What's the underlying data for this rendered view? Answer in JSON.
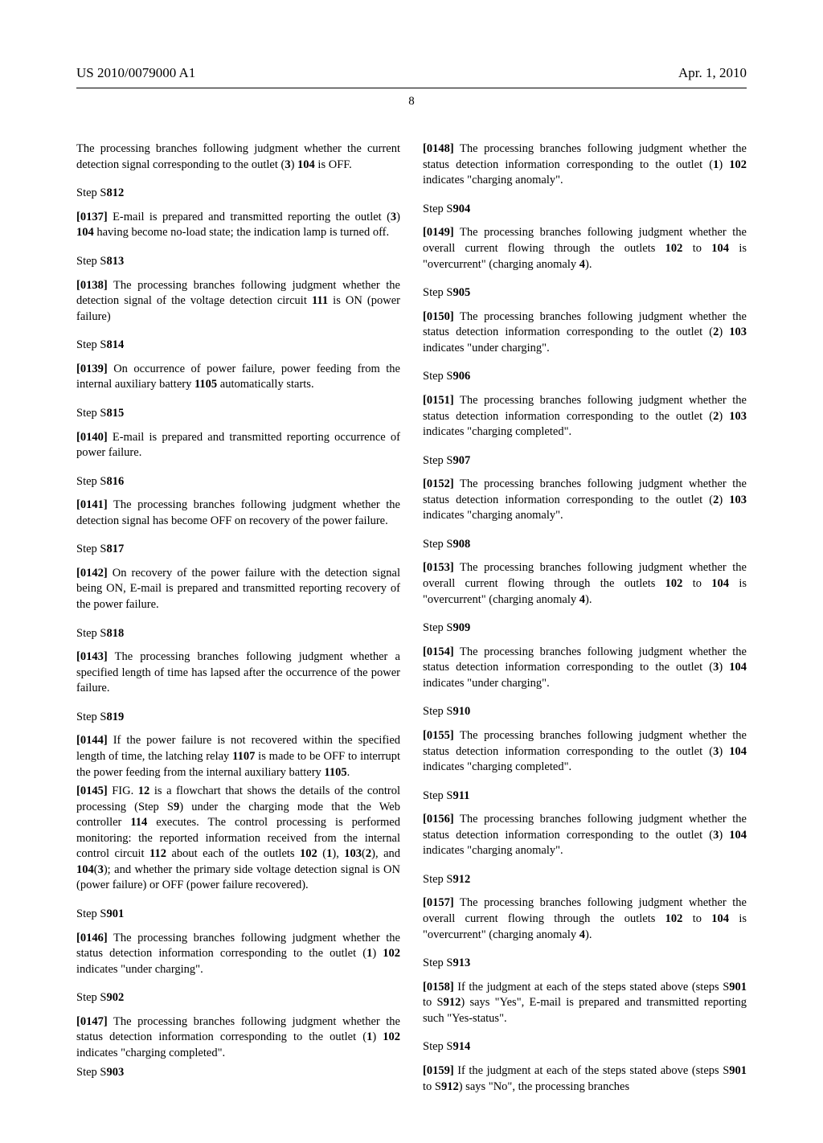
{
  "header": {
    "pub_number": "US 2010/0079000 A1",
    "date": "Apr. 1, 2010",
    "page_number": "8"
  },
  "left_col": {
    "intro": {
      "text": "The processing branches following judgment whether the current detection signal corresponding to the outlet (",
      "b1": "3",
      "t2": ") ",
      "b2": "104",
      "t3": " is OFF."
    },
    "s812": {
      "hdr_a": "Step S",
      "hdr_b": "812",
      "pn": "[0137]",
      "indent": "    ",
      "t1": "E-mail is prepared and transmitted reporting the outlet (",
      "b1": "3",
      "t2": ") ",
      "b2": "104",
      "t3": " having become no-load state; the indication lamp is turned off."
    },
    "s813": {
      "hdr_a": "Step S",
      "hdr_b": "813",
      "pn": "[0138]",
      "indent": "    ",
      "t1": "The processing branches following judgment whether the detection signal of the voltage detection circuit ",
      "b1": "111",
      "t2": " is ON (power failure)"
    },
    "s814": {
      "hdr_a": "Step S",
      "hdr_b": "814",
      "pn": "[0139]",
      "indent": "    ",
      "t1": "On occurrence of power failure, power feeding from the internal auxiliary battery ",
      "b1": "1105",
      "t2": " automatically starts."
    },
    "s815": {
      "hdr_a": "Step S",
      "hdr_b": "815",
      "pn": "[0140]",
      "indent": "    ",
      "t1": "E-mail is prepared and transmitted reporting occurrence of power failure."
    },
    "s816": {
      "hdr_a": "Step S",
      "hdr_b": "816",
      "pn": "[0141]",
      "indent": "    ",
      "t1": "The processing branches following judgment whether the detection signal has become OFF on recovery of the power failure."
    },
    "s817": {
      "hdr_a": "Step S",
      "hdr_b": "817",
      "pn": "[0142]",
      "indent": "    ",
      "t1": "On recovery of the power failure with the detection signal being ON, E-mail is prepared and transmitted reporting recovery of the power failure."
    },
    "s818": {
      "hdr_a": "Step S",
      "hdr_b": "818",
      "pn": "[0143]",
      "indent": "    ",
      "t1": "The processing branches following judgment whether a specified length of time has lapsed after the occurrence of the power failure."
    },
    "s819": {
      "hdr_a": "Step S",
      "hdr_b": "819",
      "pn": "[0144]",
      "indent": "    ",
      "t1": "If the power failure is not recovered within the specified length of time, the latching relay ",
      "b1": "1107",
      "t2": " is made to be OFF to interrupt the power feeding from the internal auxiliary battery ",
      "b2": "1105",
      "t3": "."
    },
    "p0145": {
      "pn": "[0145]",
      "indent": "    ",
      "t1": "FIG. ",
      "b1": "12",
      "t2": " is a flowchart that shows the details of the control processing (Step S",
      "b2": "9",
      "t3": ") under the charging mode that the Web controller ",
      "b3": "114",
      "t4": " executes. The control processing is performed monitoring: the reported information received from the internal control circuit ",
      "b4": "112",
      "t5": " about each of the outlets ",
      "b5": "102",
      "t6": " (",
      "b6": "1",
      "t7": "), ",
      "b7": "103",
      "t8": "(",
      "b8": "2",
      "t9": "), and ",
      "b9": "104",
      "t10": "(",
      "b10": "3",
      "t11": "); and whether the primary side voltage detection signal is ON (power failure) or OFF (power failure recovered)."
    },
    "s901": {
      "hdr_a": "Step S",
      "hdr_b": "901",
      "pn": "[0146]",
      "indent": "    ",
      "t1": "The processing branches following judgment whether the status detection information corresponding to the outlet (",
      "b1": "1",
      "t2": ") ",
      "b2": "102",
      "t3": " indicates \"under charging\"."
    },
    "s902": {
      "hdr_a": "Step S",
      "hdr_b": "902",
      "pn": "[0147]",
      "indent": "    ",
      "t1": "The processing branches following judgment whether the status detection information corresponding to the outlet (",
      "b1": "1",
      "t2": ") ",
      "b2": "102",
      "t3": " indicates \"charging completed\"."
    }
  },
  "right_col": {
    "s903": {
      "hdr_a": "Step S",
      "hdr_b": "903",
      "pn": "[0148]",
      "indent": "    ",
      "t1": "The processing branches following judgment whether the status detection information corresponding to the outlet (",
      "b1": "1",
      "t2": ") ",
      "b2": "102",
      "t3": " indicates \"charging anomaly\"."
    },
    "s904": {
      "hdr_a": "Step S",
      "hdr_b": "904",
      "pn": "[0149]",
      "indent": "    ",
      "t1": "The processing branches following judgment whether the overall current flowing through the outlets ",
      "b1": "102",
      "t2": " to ",
      "b2": "104",
      "t3": " is \"overcurrent\" (charging anomaly ",
      "b3": "4",
      "t4": ")."
    },
    "s905": {
      "hdr_a": "Step S",
      "hdr_b": "905",
      "pn": "[0150]",
      "indent": "    ",
      "t1": "The processing branches following judgment whether the status detection information corresponding to the outlet (",
      "b1": "2",
      "t2": ") ",
      "b2": "103",
      "t3": " indicates \"under charging\"."
    },
    "s906": {
      "hdr_a": "Step S",
      "hdr_b": "906",
      "pn": "[0151]",
      "indent": "    ",
      "t1": "The processing branches following judgment whether the status detection information corresponding to the outlet (",
      "b1": "2",
      "t2": ") ",
      "b2": "103",
      "t3": " indicates \"charging completed\"."
    },
    "s907": {
      "hdr_a": "Step S",
      "hdr_b": "907",
      "pn": "[0152]",
      "indent": "    ",
      "t1": "The processing branches following judgment whether the status detection information corresponding to the outlet (",
      "b1": "2",
      "t2": ") ",
      "b2": "103",
      "t3": " indicates \"charging anomaly\"."
    },
    "s908": {
      "hdr_a": "Step S",
      "hdr_b": "908",
      "pn": "[0153]",
      "indent": "    ",
      "t1": "The processing branches following judgment whether the overall current flowing through the outlets ",
      "b1": "102",
      "t2": " to ",
      "b2": "104",
      "t3": " is \"overcurrent\" (charging anomaly ",
      "b3": "4",
      "t4": ")."
    },
    "s909": {
      "hdr_a": "Step S",
      "hdr_b": "909",
      "pn": "[0154]",
      "indent": "    ",
      "t1": "The processing branches following judgment whether the status detection information corresponding to the outlet (",
      "b1": "3",
      "t2": ") ",
      "b2": "104",
      "t3": " indicates \"under charging\"."
    },
    "s910": {
      "hdr_a": "Step S",
      "hdr_b": "910",
      "pn": "[0155]",
      "indent": "    ",
      "t1": "The processing branches following judgment whether the status detection information corresponding to the outlet (",
      "b1": "3",
      "t2": ") ",
      "b2": "104",
      "t3": " indicates \"charging completed\"."
    },
    "s911": {
      "hdr_a": "Step S",
      "hdr_b": "911",
      "pn": "[0156]",
      "indent": "    ",
      "t1": "The processing branches following judgment whether the status detection information corresponding to the outlet (",
      "b1": "3",
      "t2": ") ",
      "b2": "104",
      "t3": " indicates \"charging anomaly\"."
    },
    "s912": {
      "hdr_a": "Step S",
      "hdr_b": "912",
      "pn": "[0157]",
      "indent": "    ",
      "t1": "The processing branches following judgment whether the overall current flowing through the outlets ",
      "b1": "102",
      "t2": " to ",
      "b2": "104",
      "t3": " is \"overcurrent\" (charging anomaly ",
      "b3": "4",
      "t4": ")."
    },
    "s913": {
      "hdr_a": "Step S",
      "hdr_b": "913",
      "pn": "[0158]",
      "indent": "    ",
      "t1": "If the judgment at each of the steps stated above (steps S",
      "b1": "901",
      "t2": " to S",
      "b2": "912",
      "t3": ") says \"Yes\", E-mail is prepared and transmitted reporting such \"Yes-status\"."
    },
    "s914": {
      "hdr_a": "Step S",
      "hdr_b": "914",
      "pn": "[0159]",
      "indent": "    ",
      "t1": "If the judgment at each of the steps stated above (steps S",
      "b1": "901",
      "t2": " to S",
      "b2": "912",
      "t3": ") says \"No\", the processing branches"
    }
  }
}
